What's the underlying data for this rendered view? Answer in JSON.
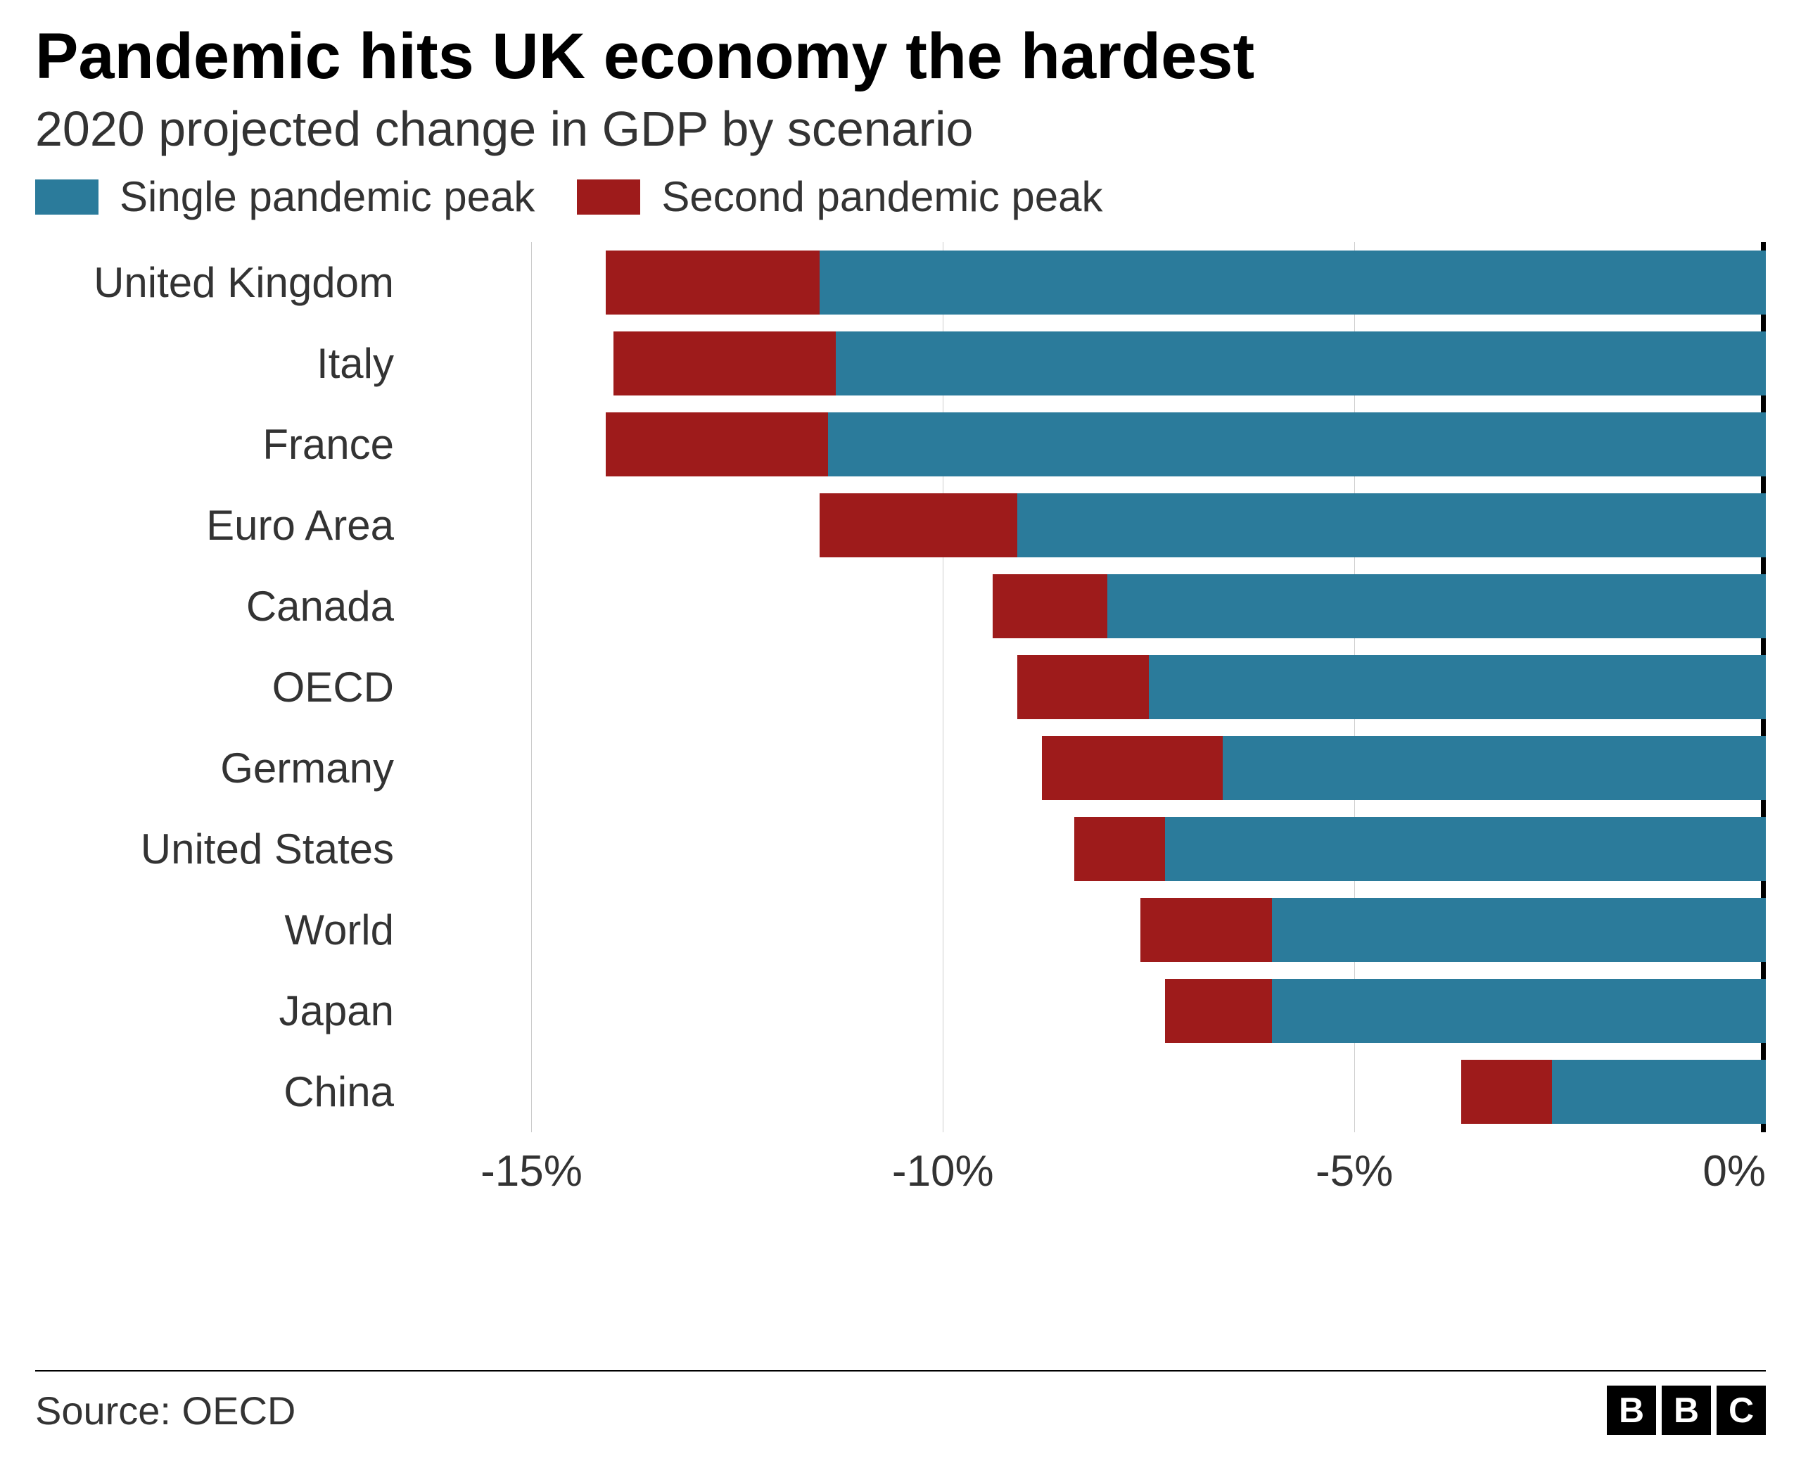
{
  "title": "Pandemic hits UK economy the hardest",
  "subtitle": "2020 projected change in GDP by scenario",
  "legend": {
    "items": [
      {
        "label": "Single pandemic peak",
        "color": "#2b7b9b"
      },
      {
        "label": "Second pandemic peak",
        "color": "#9e1b1b"
      }
    ],
    "fontsize": 60
  },
  "chart": {
    "type": "bar",
    "orientation": "horizontal",
    "stacked": true,
    "xmin": -16.5,
    "xmax": 0,
    "xticks": [
      -15,
      -10,
      -5,
      0
    ],
    "xtick_labels": [
      "-15%",
      "-10%",
      "-5%",
      "0%"
    ],
    "grid_color": "#cccccc",
    "zero_line_color": "#000000",
    "background": "#ffffff",
    "bar_height_ratio": 0.78,
    "label_fontsize": 60,
    "tick_fontsize": 62,
    "series_colors": {
      "single": "#2b7b9b",
      "second": "#9e1b1b"
    },
    "rows": [
      {
        "label": "United Kingdom",
        "single": -11.5,
        "second_extra": -2.6
      },
      {
        "label": "Italy",
        "single": -11.3,
        "second_extra": -2.7
      },
      {
        "label": "France",
        "single": -11.4,
        "second_extra": -2.7
      },
      {
        "label": "Euro Area",
        "single": -9.1,
        "second_extra": -2.4
      },
      {
        "label": "Canada",
        "single": -8.0,
        "second_extra": -1.4
      },
      {
        "label": "OECD",
        "single": -7.5,
        "second_extra": -1.6
      },
      {
        "label": "Germany",
        "single": -6.6,
        "second_extra": -2.2
      },
      {
        "label": "United States",
        "single": -7.3,
        "second_extra": -1.1
      },
      {
        "label": "World",
        "single": -6.0,
        "second_extra": -1.6
      },
      {
        "label": "Japan",
        "single": -6.0,
        "second_extra": -1.3
      },
      {
        "label": "China",
        "single": -2.6,
        "second_extra": -1.1
      }
    ]
  },
  "title_fontsize": 92,
  "subtitle_fontsize": 70,
  "footer": {
    "source_label": "Source: OECD",
    "source_fontsize": 56,
    "logo_letters": [
      "B",
      "B",
      "C"
    ]
  }
}
